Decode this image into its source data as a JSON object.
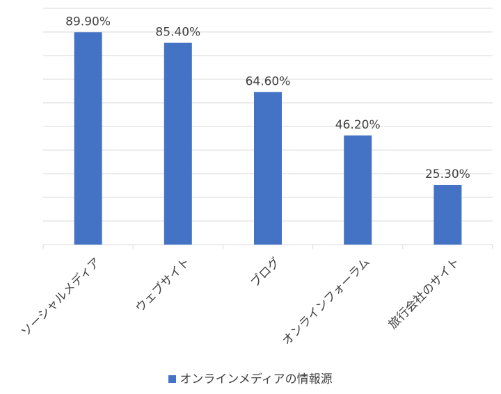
{
  "chart_data": {
    "type": "bar",
    "categories": [
      "ソーシャルメディア",
      "ウェブサイト",
      "ブログ",
      "オンラインフォーラム",
      "旅行会社のサイト"
    ],
    "series": [
      {
        "name": "オンラインメディアの情報源",
        "values": [
          89.9,
          85.4,
          64.6,
          46.2,
          25.3
        ],
        "labels": [
          "89.90%",
          "85.40%",
          "64.60%",
          "46.20%",
          "25.30%"
        ],
        "color": "#4472c4"
      }
    ],
    "ylim": [
      0,
      100
    ],
    "grid": true,
    "legend_position": "bottom"
  }
}
